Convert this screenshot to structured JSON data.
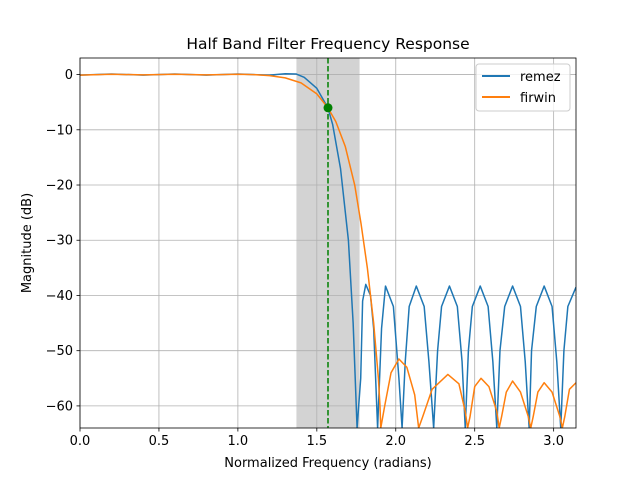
{
  "chart_data": {
    "type": "line",
    "title": "Half Band Filter Frequency Response",
    "xlabel": "Normalized Frequency (radians)",
    "ylabel": "Magnitude (dB)",
    "xlim": [
      0,
      3.14159
    ],
    "ylim": [
      -64,
      3
    ],
    "x_ticks": [
      0.0,
      0.5,
      1.0,
      1.5,
      2.0,
      2.5,
      3.0
    ],
    "x_tick_labels": [
      "0.0",
      "0.5",
      "1.0",
      "1.5",
      "2.0",
      "2.5",
      "3.0"
    ],
    "y_ticks": [
      0,
      -10,
      -20,
      -30,
      -40,
      -50,
      -60
    ],
    "y_tick_labels": [
      "0",
      "−10",
      "−20",
      "−30",
      "−40",
      "−50",
      "−60"
    ],
    "grid": true,
    "legend_position": "top-right",
    "transition_band": [
      1.3708,
      1.7708
    ],
    "cutoff_frequency": 1.5708,
    "cutoff_point": [
      1.5708,
      -6.02
    ],
    "colors": {
      "remez": "#1f77b4",
      "firwin": "#ff7f0e",
      "cutoff": "#008000",
      "band": "#d3d3d3"
    },
    "series": [
      {
        "name": "remez",
        "points": [
          [
            0,
            -0.1
          ],
          [
            0.2,
            0.1
          ],
          [
            0.4,
            -0.1
          ],
          [
            0.6,
            0.1
          ],
          [
            0.8,
            -0.1
          ],
          [
            1.0,
            0.1
          ],
          [
            1.2,
            -0.1
          ],
          [
            1.3,
            0.15
          ],
          [
            1.37,
            0.1
          ],
          [
            1.42,
            -0.5
          ],
          [
            1.5,
            -2.5
          ],
          [
            1.57,
            -6.0
          ],
          [
            1.6,
            -9.0
          ],
          [
            1.65,
            -17.0
          ],
          [
            1.7,
            -30.0
          ],
          [
            1.73,
            -45.0
          ],
          [
            1.755,
            -64
          ],
          [
            1.778,
            -55.0
          ],
          [
            1.79,
            -41.0
          ],
          [
            1.81,
            -38.0
          ],
          [
            1.84,
            -40.0
          ],
          [
            1.86,
            -46.0
          ],
          [
            1.885,
            -64
          ],
          [
            1.91,
            -46.0
          ],
          [
            1.935,
            -38.3
          ],
          [
            1.985,
            -42.0
          ],
          [
            2.02,
            -55.0
          ],
          [
            2.04,
            -64
          ],
          [
            2.06,
            -52.0
          ],
          [
            2.085,
            -42.0
          ],
          [
            2.13,
            -38.3
          ],
          [
            2.18,
            -42.0
          ],
          [
            2.21,
            -52.0
          ],
          [
            2.24,
            -64
          ],
          [
            2.265,
            -50.0
          ],
          [
            2.29,
            -42.0
          ],
          [
            2.34,
            -38.3
          ],
          [
            2.39,
            -42.0
          ],
          [
            2.42,
            -52.0
          ],
          [
            2.44,
            -64
          ],
          [
            2.46,
            -50.0
          ],
          [
            2.485,
            -42.0
          ],
          [
            2.535,
            -38.3
          ],
          [
            2.585,
            -42.0
          ],
          [
            2.615,
            -52.0
          ],
          [
            2.64,
            -64
          ],
          [
            2.66,
            -50.0
          ],
          [
            2.69,
            -42.0
          ],
          [
            2.74,
            -38.3
          ],
          [
            2.79,
            -42.0
          ],
          [
            2.82,
            -52.0
          ],
          [
            2.845,
            -64
          ],
          [
            2.86,
            -50.0
          ],
          [
            2.89,
            -42.0
          ],
          [
            2.94,
            -38.3
          ],
          [
            2.99,
            -42.0
          ],
          [
            3.02,
            -52.0
          ],
          [
            3.045,
            -64
          ],
          [
            3.065,
            -50.0
          ],
          [
            3.09,
            -42.0
          ],
          [
            3.1416,
            -38.5
          ]
        ]
      },
      {
        "name": "firwin",
        "points": [
          [
            0,
            -0.1
          ],
          [
            0.2,
            0.05
          ],
          [
            0.4,
            -0.05
          ],
          [
            0.6,
            0.05
          ],
          [
            0.8,
            -0.05
          ],
          [
            1.0,
            0.05
          ],
          [
            1.1,
            0.0
          ],
          [
            1.2,
            -0.2
          ],
          [
            1.3,
            -0.6
          ],
          [
            1.4,
            -1.5
          ],
          [
            1.5,
            -3.5
          ],
          [
            1.57,
            -6.0
          ],
          [
            1.62,
            -8.5
          ],
          [
            1.68,
            -13.0
          ],
          [
            1.74,
            -20.0
          ],
          [
            1.78,
            -27.0
          ],
          [
            1.82,
            -35.0
          ],
          [
            1.86,
            -45.0
          ],
          [
            1.89,
            -55.0
          ],
          [
            1.9,
            -60.0
          ],
          [
            1.905,
            -64
          ],
          [
            1.93,
            -60.0
          ],
          [
            1.97,
            -54.0
          ],
          [
            2.02,
            -51.5
          ],
          [
            2.07,
            -53.0
          ],
          [
            2.12,
            -58.0
          ],
          [
            2.145,
            -64
          ],
          [
            2.17,
            -62.0
          ],
          [
            2.23,
            -57.0
          ],
          [
            2.33,
            -54.3
          ],
          [
            2.4,
            -56.0
          ],
          [
            2.44,
            -61.0
          ],
          [
            2.455,
            -64
          ],
          [
            2.47,
            -62.0
          ],
          [
            2.5,
            -56.5
          ],
          [
            2.54,
            -55.0
          ],
          [
            2.59,
            -56.5
          ],
          [
            2.64,
            -61.0
          ],
          [
            2.655,
            -64
          ],
          [
            2.67,
            -62.0
          ],
          [
            2.7,
            -57.5
          ],
          [
            2.74,
            -55.5
          ],
          [
            2.79,
            -57.5
          ],
          [
            2.84,
            -62.0
          ],
          [
            2.855,
            -64
          ],
          [
            2.87,
            -62.0
          ],
          [
            2.9,
            -57.5
          ],
          [
            2.94,
            -55.8
          ],
          [
            2.99,
            -57.5
          ],
          [
            3.04,
            -62.0
          ],
          [
            3.055,
            -64
          ],
          [
            3.07,
            -62.0
          ],
          [
            3.1,
            -57.0
          ],
          [
            3.1416,
            -55.8
          ]
        ]
      }
    ]
  }
}
